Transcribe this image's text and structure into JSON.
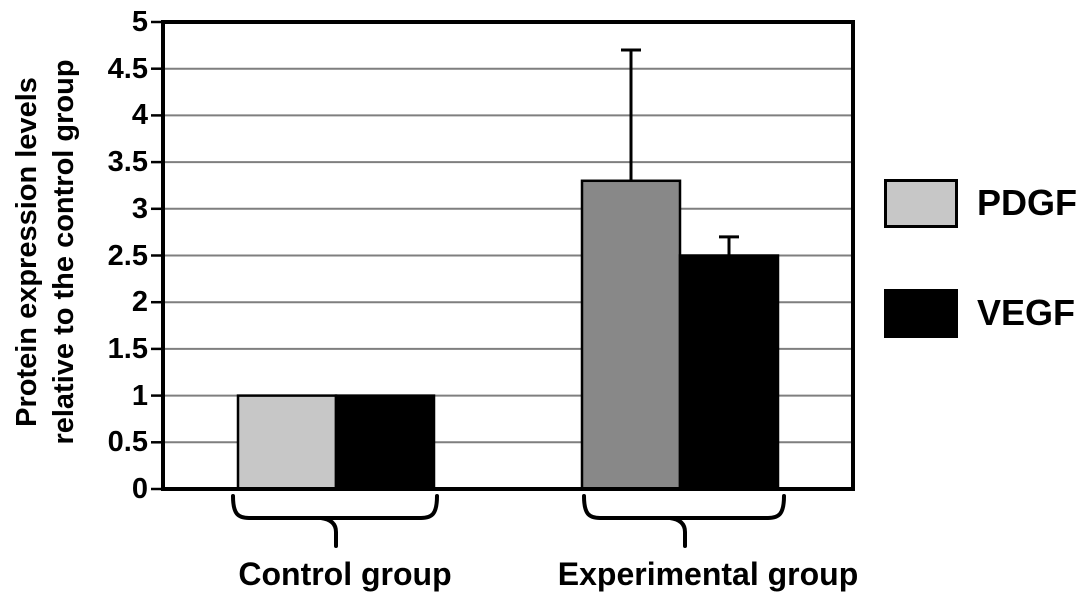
{
  "chart_data": {
    "type": "bar",
    "title": "",
    "xlabel": "",
    "ylabel": "Protein expression levels relative to the control group",
    "ylabel_lines": [
      "Protein expression levels",
      "relative to the control group"
    ],
    "ylim": [
      0,
      5
    ],
    "ytick_step": 0.5,
    "yticks": [
      "0",
      "0.5",
      "1",
      "1.5",
      "2",
      "2.5",
      "3",
      "3.5",
      "4",
      "4.5",
      "5"
    ],
    "grid": true,
    "categories": [
      "Control group",
      "Experimental group"
    ],
    "series": [
      {
        "name": "PDGF",
        "values": [
          1.0,
          3.3
        ],
        "error_plus": [
          0,
          1.4
        ],
        "bar_colors": [
          "#c7c7c7",
          "#888888"
        ]
      },
      {
        "name": "VEGF",
        "values": [
          1.0,
          2.5
        ],
        "error_plus": [
          0,
          0.2
        ],
        "bar_colors": [
          "#000000",
          "#000000"
        ]
      }
    ],
    "legend": {
      "position": "right",
      "items": [
        {
          "label": "PDGF",
          "color": "#c7c7c7"
        },
        {
          "label": "VEGF",
          "color": "#000000"
        }
      ]
    },
    "colors": {
      "gridline": "#7f7f7f",
      "axis": "#000000",
      "bar_border": "#000000",
      "error_bar": "#000000",
      "brace": "#000000",
      "background": "#ffffff"
    }
  }
}
